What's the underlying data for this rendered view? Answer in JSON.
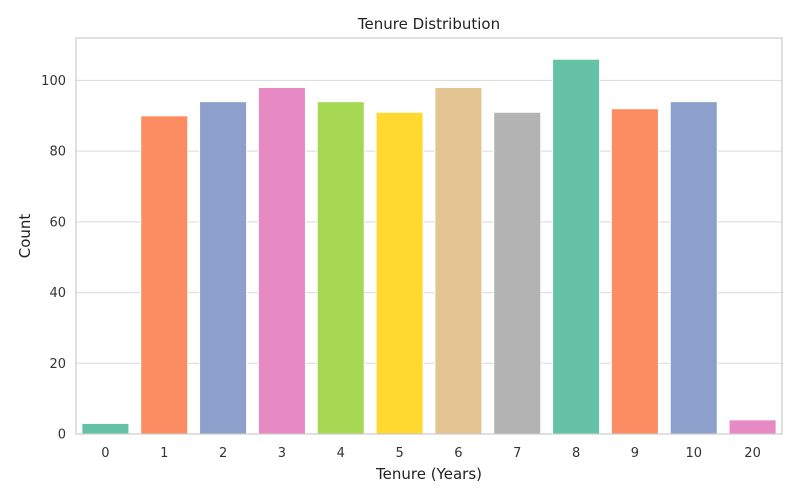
{
  "chart_data": {
    "type": "bar",
    "title": "Tenure Distribution",
    "xlabel": "Tenure (Years)",
    "ylabel": "Count",
    "categories": [
      "0",
      "1",
      "2",
      "3",
      "4",
      "5",
      "6",
      "7",
      "8",
      "9",
      "10",
      "20"
    ],
    "values": [
      3,
      90,
      94,
      98,
      94,
      91,
      98,
      91,
      106,
      92,
      94,
      4
    ],
    "ylim": [
      0,
      112
    ],
    "yticks": [
      0,
      20,
      40,
      60,
      80,
      100
    ],
    "grid": true,
    "colors": [
      "#66c2a5",
      "#fc8d62",
      "#8da0cb",
      "#e78ac3",
      "#a6d854",
      "#ffd92f",
      "#e5c494",
      "#b3b3b3",
      "#66c2a5",
      "#fc8d62",
      "#8da0cb",
      "#e78ac3"
    ]
  }
}
